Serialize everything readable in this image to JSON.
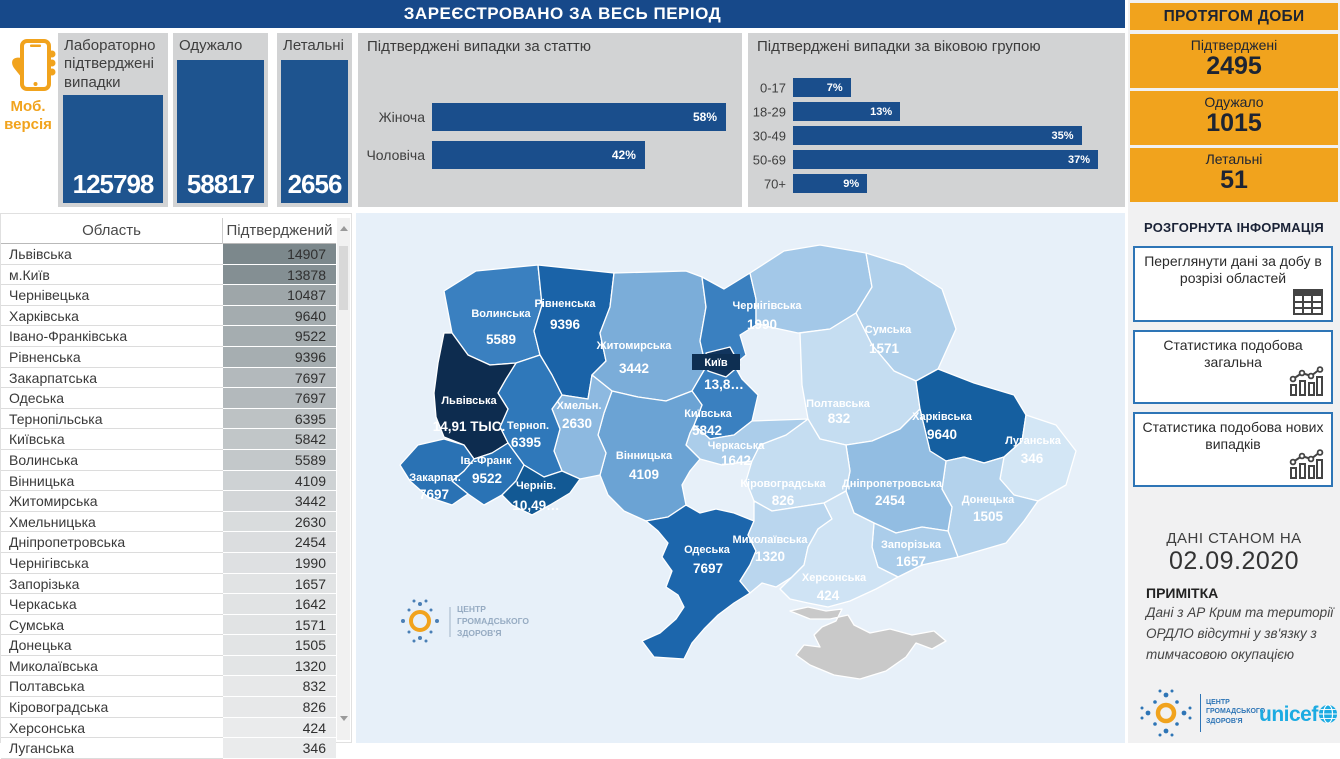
{
  "header": {
    "title_period": "ЗАРЕЄСТРОВАНО ЗА ВЕСЬ ПЕРІОД",
    "title_day": "ПРОТЯГОМ ДОБИ"
  },
  "mobile": {
    "label_line1": "Моб.",
    "label_line2": "версія"
  },
  "summary_cards": [
    {
      "label": "Лабораторно підтверджені випадки",
      "value": "125798"
    },
    {
      "label": "Одужало",
      "value": "58817"
    },
    {
      "label": "Летальні",
      "value": "2656"
    }
  ],
  "daily_cards": [
    {
      "label": "Підтверджені",
      "value": "2495"
    },
    {
      "label": "Одужало",
      "value": "1015"
    },
    {
      "label": "Летальні",
      "value": "51"
    }
  ],
  "chart_data": [
    {
      "type": "bar",
      "orientation": "horizontal",
      "title": "Підтверджені випадки за статтю",
      "categories": [
        "Жіноча",
        "Чоловіча"
      ],
      "values": [
        58,
        42
      ],
      "labels": [
        "58%",
        "42%"
      ],
      "unit": "%",
      "max_scale": 58,
      "bar_color": "#1a4e8c"
    },
    {
      "type": "bar",
      "orientation": "horizontal",
      "title": "Підтверджені випадки за віковою групою",
      "categories": [
        "0-17",
        "18-29",
        "30-49",
        "50-69",
        "70+"
      ],
      "values": [
        7,
        13,
        35,
        37,
        9
      ],
      "labels": [
        "7%",
        "13%",
        "35%",
        "37%",
        "9%"
      ],
      "unit": "%",
      "max_scale": 37,
      "bar_color": "#1a4e8c"
    },
    {
      "type": "table",
      "columns": [
        "Область",
        "Підтверджений"
      ],
      "rows": [
        [
          "Львівська",
          14907
        ],
        [
          "м.Київ",
          13878
        ],
        [
          "Чернівецька",
          10487
        ],
        [
          "Харківська",
          9640
        ],
        [
          "Івано-Франківська",
          9522
        ],
        [
          "Рівненська",
          9396
        ],
        [
          "Закарпатська",
          7697
        ],
        [
          "Одеська",
          7697
        ],
        [
          "Тернопільська",
          6395
        ],
        [
          "Київська",
          5842
        ],
        [
          "Волинська",
          5589
        ],
        [
          "Вінницька",
          4109
        ],
        [
          "Житомирська",
          3442
        ],
        [
          "Хмельницька",
          2630
        ],
        [
          "Дніпропетровська",
          2454
        ],
        [
          "Чернігівська",
          1990
        ],
        [
          "Запорізька",
          1657
        ],
        [
          "Черкаська",
          1642
        ],
        [
          "Сумська",
          1571
        ],
        [
          "Донецька",
          1505
        ],
        [
          "Миколаївська",
          1320
        ],
        [
          "Полтавська",
          832
        ],
        [
          "Кіровоградська",
          826
        ],
        [
          "Херсонська",
          424
        ],
        [
          "Луганська",
          346
        ]
      ]
    },
    {
      "type": "choropleth_map",
      "regions": {
        "volyn": {
          "name": "Волинська",
          "value": "5589",
          "cases": 5589,
          "color": "#3a80c0"
        },
        "rivne": {
          "name": "Рівненська",
          "value": "9396",
          "cases": 9396,
          "color": "#1a63a8"
        },
        "zhytomyr": {
          "name": "Житомирська",
          "value": "3442",
          "cases": 3442,
          "color": "#7badd9"
        },
        "kyivska": {
          "name": "Київська",
          "value": "5842",
          "cases": 5842,
          "color": "#3a80c0"
        },
        "kyiv": {
          "name": "Київ",
          "value": "13,8…",
          "cases": 13878,
          "color": "#11355e"
        },
        "chernihiv": {
          "name": "Чернігівська",
          "value": "1990",
          "cases": 1990,
          "color": "#a3c8e8"
        },
        "sumy": {
          "name": "Сумська",
          "value": "1571",
          "cases": 1571,
          "color": "#b0d0eb"
        },
        "lviv": {
          "name": "Львівська",
          "value": "14,91 ТЫС.",
          "cases": 14907,
          "color": "#0d2c4f"
        },
        "ternopil": {
          "name": "Терноп.",
          "value": "6395",
          "cases": 6395,
          "color": "#2f78ba"
        },
        "khmelnytskyi": {
          "name": "Хмельн.",
          "value": "2630",
          "cases": 2630,
          "color": "#8db9e0"
        },
        "vinnytsia": {
          "name": "Вінницька",
          "value": "4109",
          "cases": 4109,
          "color": "#6ba3d4"
        },
        "cherkasy": {
          "name": "Черкаська",
          "value": "1642",
          "cases": 1642,
          "color": "#abcdea"
        },
        "ivano": {
          "name": "Ів.-Франк",
          "value": "9522",
          "cases": 9522,
          "color": "#2a73b5"
        },
        "zakarpattia": {
          "name": "Закарпат.",
          "value": "7697",
          "cases": 7697,
          "color": "#2a72b4"
        },
        "chernivtsi": {
          "name": "Чернів.",
          "value": "10,49…",
          "cases": 10487,
          "color": "#125994"
        },
        "odesa": {
          "name": "Одеська",
          "value": "7697",
          "cases": 7697,
          "color": "#1c66ac"
        },
        "mykolaiv": {
          "name": "Миколаївська",
          "value": "1320",
          "cases": 1320,
          "color": "#bad6ee"
        },
        "kherson": {
          "name": "Херсонська",
          "value": "424",
          "cases": 424,
          "color": "#cfe3f4"
        },
        "poltava": {
          "name": "Полтавська",
          "value": "832",
          "cases": 832,
          "color": "#c5ddf1"
        },
        "kirovohrad": {
          "name": "Кіровоградська",
          "value": "826",
          "cases": 826,
          "color": "#c5ddf1"
        },
        "dnipro": {
          "name": "Дніпропетровська",
          "value": "2454",
          "cases": 2454,
          "color": "#92bde2"
        },
        "kharkiv": {
          "name": "Харківська",
          "value": "9640",
          "cases": 9640,
          "color": "#155fa0"
        },
        "luhansk": {
          "name": "Луганська",
          "value": "346",
          "cases": 346,
          "color": "#d3e6f5"
        },
        "donetsk": {
          "name": "Донецька",
          "value": "1505",
          "cases": 1505,
          "color": "#b3d2ec"
        },
        "zaporizhzhia": {
          "name": "Запорізька",
          "value": "1657",
          "cases": 1657,
          "color": "#abcdea"
        },
        "crimea": {
          "name": "",
          "value": "",
          "cases": 0,
          "color": "#c9c9c9"
        }
      }
    }
  ],
  "info_panel": {
    "section_title": "РОЗГОРНУТА ІНФОРМАЦІЯ",
    "buttons": [
      {
        "label": "Переглянути дані за добу в розрізі областей"
      },
      {
        "label": "Статистика подобова загальна"
      },
      {
        "label": "Статистика подобова нових випадків"
      }
    ],
    "as_of_label": "ДАНІ СТАНОМ НА",
    "as_of_date": "02.09.2020",
    "note_title": "ПРИМІТКА",
    "note_text": "Дані з АР Крим та території ОРДЛО відсутні у зв'язку з тимчасовою окупацією"
  },
  "logos": {
    "phc_lines": [
      "ЦЕНТР",
      "ГРОМАДСЬКОГО",
      "ЗДОРОВ'Я"
    ],
    "unicef": "unicef"
  }
}
